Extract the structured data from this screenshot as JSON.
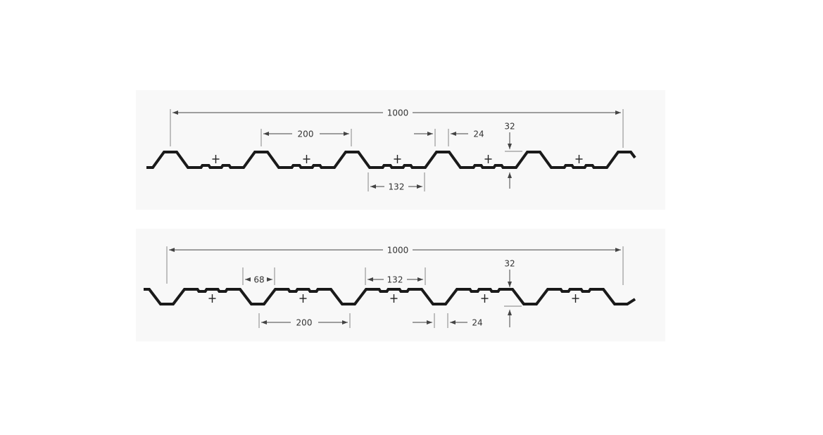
{
  "profiles": [
    {
      "orientation": "ribs-up",
      "dimensions": {
        "overall": "1000",
        "pitch": "200",
        "crest": "24",
        "height": "32",
        "pan": "132"
      }
    },
    {
      "orientation": "ribs-down",
      "dimensions": {
        "overall": "1000",
        "trough": "68",
        "pan": "132",
        "pitch": "200",
        "crest": "24",
        "height": "32"
      }
    }
  ],
  "colors": {
    "profile": "#1a1a1a",
    "dimension": "#444444",
    "background": "#f8f8f8"
  }
}
